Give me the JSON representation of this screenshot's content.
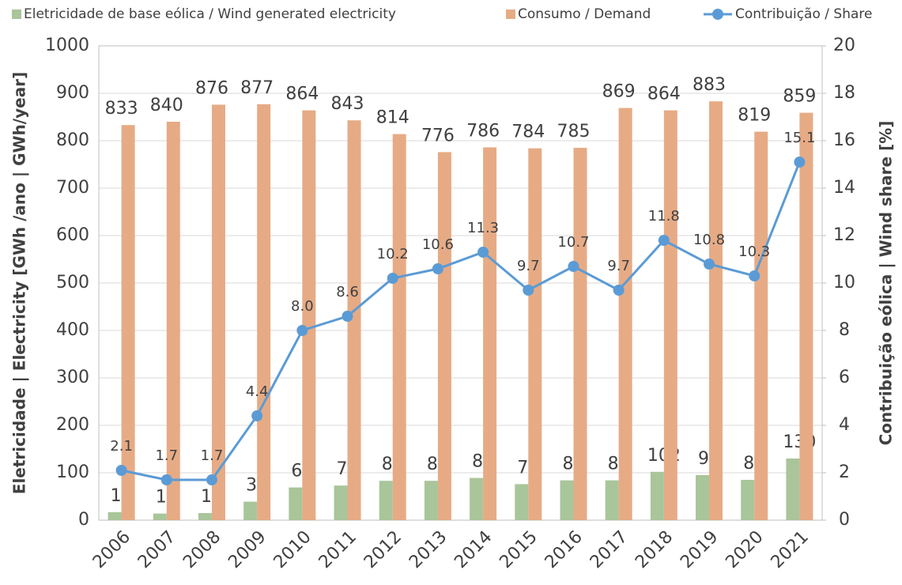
{
  "chart_data": {
    "type": "bar",
    "ylabel": "Eletricidade | Electricity [GWh /ano | GWh/year]",
    "y2label": "Contribuição eólica | Wind share [%]",
    "categories": [
      "2006",
      "2007",
      "2008",
      "2009",
      "2010",
      "2011",
      "2012",
      "2013",
      "2014",
      "2015",
      "2016",
      "2017",
      "2018",
      "2019",
      "2020",
      "2021"
    ],
    "series": [
      {
        "name": "Eletricidade de base eólica / Wind generated electricity",
        "type": "bar",
        "color": "#a9c59a",
        "values": [
          17,
          14,
          15,
          39,
          69,
          73,
          83,
          83,
          89,
          76,
          84,
          84,
          102,
          95,
          85,
          130
        ]
      },
      {
        "name": "Consumo / Demand",
        "type": "bar",
        "color": "#e6ab85",
        "values": [
          833,
          840,
          876,
          877,
          864,
          843,
          814,
          776,
          786,
          784,
          785,
          869,
          864,
          883,
          819,
          859
        ]
      },
      {
        "name": "Contribuição / Share",
        "type": "line",
        "axis": "y2",
        "color": "#5b9bd5",
        "values": [
          2.1,
          1.7,
          1.7,
          4.4,
          8.0,
          8.6,
          10.2,
          10.6,
          11.3,
          9.7,
          10.7,
          9.7,
          11.8,
          10.8,
          10.3,
          15.1
        ],
        "value_labels": [
          "2.1",
          "1.7",
          "1.7",
          "4.4",
          "8.0",
          "8.6",
          "10.2",
          "10.6",
          "11.3",
          "9.7",
          "10.7",
          "9.7",
          "11.8",
          "10.8",
          "10.3",
          "15.1"
        ]
      }
    ],
    "ylim": [
      0,
      1000
    ],
    "yticks": [
      0,
      100,
      200,
      300,
      400,
      500,
      600,
      700,
      800,
      900,
      1000
    ],
    "y2lim": [
      0,
      20
    ],
    "y2ticks": [
      0,
      2,
      4,
      6,
      8,
      10,
      12,
      14,
      16,
      18,
      20
    ],
    "grid": true,
    "legend": "top"
  }
}
